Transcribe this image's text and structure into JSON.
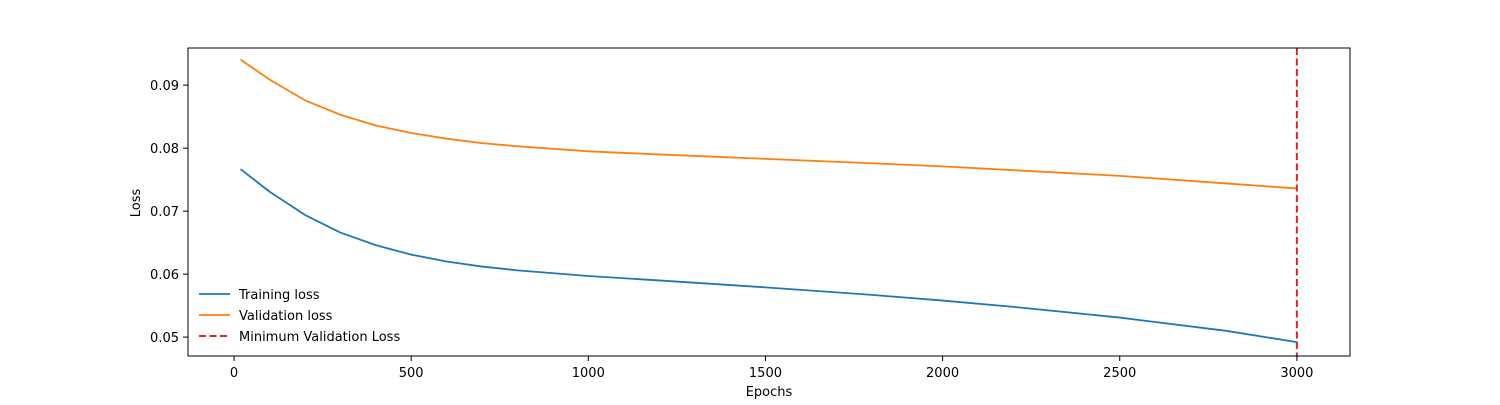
{
  "chart_data": {
    "type": "line",
    "title": "",
    "xlabel": "Epochs",
    "ylabel": "Loss",
    "xlim": [
      -130,
      3150
    ],
    "ylim": [
      0.047,
      0.0959
    ],
    "x_ticks": [
      0,
      500,
      1000,
      1500,
      2000,
      2500,
      3000
    ],
    "x_tick_labels": [
      "0",
      "500",
      "1000",
      "1500",
      "2000",
      "2500",
      "3000"
    ],
    "y_ticks": [
      0.05,
      0.06,
      0.07,
      0.08,
      0.09
    ],
    "y_tick_labels": [
      "0.05",
      "0.06",
      "0.07",
      "0.08",
      "0.09"
    ],
    "grid": false,
    "legend_position": "lower-left",
    "series": [
      {
        "name": "Training loss",
        "color": "#1f77b4",
        "style": "solid",
        "x": [
          20,
          100,
          200,
          300,
          400,
          500,
          600,
          700,
          800,
          1000,
          1200,
          1500,
          1800,
          2000,
          2200,
          2500,
          2800,
          3000
        ],
        "y": [
          0.0766,
          0.0731,
          0.0694,
          0.0666,
          0.0646,
          0.0631,
          0.062,
          0.0612,
          0.0606,
          0.0597,
          0.059,
          0.0579,
          0.0567,
          0.0558,
          0.0548,
          0.0531,
          0.051,
          0.0492
        ]
      },
      {
        "name": "Validation loss",
        "color": "#ff7f0e",
        "style": "solid",
        "x": [
          20,
          100,
          200,
          300,
          400,
          500,
          600,
          700,
          800,
          1000,
          1200,
          1500,
          1800,
          2000,
          2200,
          2500,
          2800,
          3000
        ],
        "y": [
          0.094,
          0.0909,
          0.0876,
          0.0853,
          0.0836,
          0.0824,
          0.0815,
          0.0808,
          0.0803,
          0.0795,
          0.079,
          0.0783,
          0.0776,
          0.0771,
          0.0765,
          0.0756,
          0.0744,
          0.0736
        ]
      },
      {
        "name": "Minimum Validation Loss",
        "color": "#d62728",
        "style": "dashed",
        "vline_x": 3000
      }
    ]
  }
}
